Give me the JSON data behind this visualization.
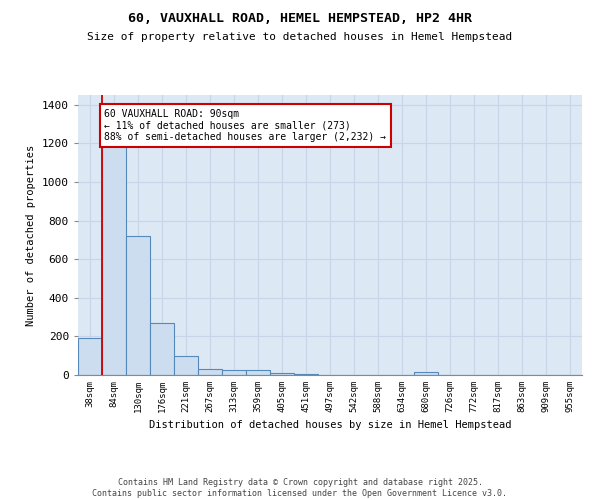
{
  "title": "60, VAUXHALL ROAD, HEMEL HEMPSTEAD, HP2 4HR",
  "subtitle": "Size of property relative to detached houses in Hemel Hempstead",
  "xlabel": "Distribution of detached houses by size in Hemel Hempstead",
  "ylabel": "Number of detached properties",
  "bar_color": "#ccddef",
  "bar_edge_color": "#5588bb",
  "background_color": "#dde8f5",
  "grid_color": "#c8d5e8",
  "categories": [
    "38sqm",
    "84sqm",
    "130sqm",
    "176sqm",
    "221sqm",
    "267sqm",
    "313sqm",
    "359sqm",
    "405sqm",
    "451sqm",
    "497sqm",
    "542sqm",
    "588sqm",
    "634sqm",
    "680sqm",
    "726sqm",
    "772sqm",
    "817sqm",
    "863sqm",
    "909sqm",
    "955sqm"
  ],
  "values": [
    190,
    1220,
    720,
    270,
    100,
    30,
    25,
    25,
    8,
    3,
    2,
    2,
    0,
    0,
    15,
    0,
    0,
    0,
    0,
    0,
    0
  ],
  "red_line_x": 0.5,
  "annotation_line1": "60 VAUXHALL ROAD: 90sqm",
  "annotation_line2": "← 11% of detached houses are smaller (273)",
  "annotation_line3": "88% of semi-detached houses are larger (2,232) →",
  "ylim": [
    0,
    1450
  ],
  "yticks": [
    0,
    200,
    400,
    600,
    800,
    1000,
    1200,
    1400
  ],
  "footer_line1": "Contains HM Land Registry data © Crown copyright and database right 2025.",
  "footer_line2": "Contains public sector information licensed under the Open Government Licence v3.0."
}
